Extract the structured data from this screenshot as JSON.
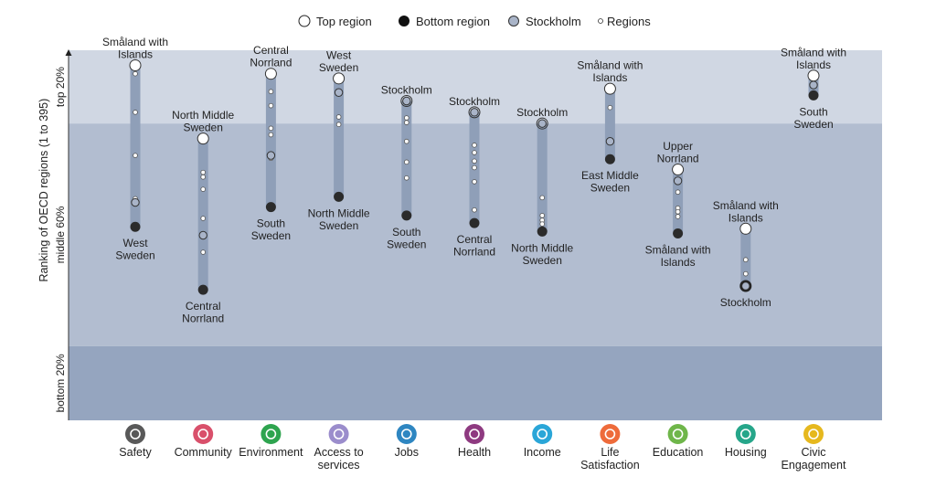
{
  "legend": [
    {
      "label": "Top region",
      "marker": "top"
    },
    {
      "label": "Bottom region",
      "marker": "bottom"
    },
    {
      "label": "Stockholm",
      "marker": "stockholm"
    },
    {
      "label": "Regions",
      "marker": "region"
    }
  ],
  "colors": {
    "band_top": "#d0d7e3",
    "band_middle": "#b2bdd0",
    "band_bottom": "#95a5bf",
    "range_bar": "#8f9fb8",
    "top_marker_fill": "#ffffff",
    "bottom_marker_fill": "#2b2b2b",
    "stockholm_fill": "#a9b4c8"
  },
  "chart_data": {
    "type": "scatter",
    "title": "",
    "ylabel": "Ranking of OECD regions (1 to 395)",
    "y_range": [
      1,
      395
    ],
    "y_inverted": true,
    "bands": [
      {
        "label": "top 20%",
        "from": 1,
        "to": 79
      },
      {
        "label": "middle 60%",
        "from": 79,
        "to": 316
      },
      {
        "label": "bottom 20%",
        "from": 316,
        "to": 395
      }
    ],
    "categories": [
      {
        "name": "Safety",
        "icon": "running-person-icon",
        "color": "#595959",
        "top": {
          "label": "Småland with Islands",
          "rank": 17
        },
        "bottom": {
          "label": "West Sweden",
          "rank": 189
        },
        "stockholm": 163,
        "regions": [
          26,
          67,
          113,
          159
        ]
      },
      {
        "name": "Community",
        "icon": "people-icon",
        "color": "#d9506b",
        "top": {
          "label": "North Middle Sweden",
          "rank": 95
        },
        "bottom": {
          "label": "Central Norrland",
          "rank": 256
        },
        "stockholm": 198,
        "regions": [
          131,
          136,
          149,
          180,
          216
        ]
      },
      {
        "name": "Environment",
        "icon": "tree-icon",
        "color": "#2ea44f",
        "top": {
          "label": "Central Norrland",
          "rank": 26
        },
        "bottom": {
          "label": "South Sweden",
          "rank": 168
        },
        "stockholm": 113,
        "regions": [
          45,
          60,
          84,
          91,
          116
        ]
      },
      {
        "name": "Access to services",
        "icon": "dots-circle-icon",
        "color": "#9b8dcc",
        "top": {
          "label": "West Sweden",
          "rank": 31
        },
        "bottom": {
          "label": "North Middle Sweden",
          "rank": 157
        },
        "stockholm": 46,
        "regions": [
          72,
          80
        ]
      },
      {
        "name": "Jobs",
        "icon": "briefcase-icon",
        "color": "#2e86c1",
        "top": {
          "label": "Stockholm",
          "rank": 55
        },
        "bottom": {
          "label": "South Sweden",
          "rank": 177
        },
        "stockholm": 55,
        "regions": [
          73,
          78,
          98,
          120,
          137
        ]
      },
      {
        "name": "Health",
        "icon": "cross-icon",
        "color": "#8e3a80",
        "top": {
          "label": "Stockholm",
          "rank": 67
        },
        "bottom": {
          "label": "Central Norrland",
          "rank": 185
        },
        "stockholm": 67,
        "regions": [
          102,
          110,
          119,
          126,
          141,
          171
        ]
      },
      {
        "name": "Income",
        "icon": "money-icon",
        "color": "#2aa6d8",
        "top": {
          "label": "Stockholm",
          "rank": 79
        },
        "bottom": {
          "label": "North Middle Sweden",
          "rank": 194
        },
        "stockholm": 79,
        "regions": [
          158,
          177,
          182,
          186
        ]
      },
      {
        "name": "Life Satisfaction",
        "icon": "heart-icon",
        "color": "#ee6b3b",
        "top": {
          "label": "Småland with Islands",
          "rank": 42
        },
        "bottom": {
          "label": "East Middle Sweden",
          "rank": 117
        },
        "stockholm": 98,
        "regions": [
          62
        ]
      },
      {
        "name": "Education",
        "icon": "book-icon",
        "color": "#6fb64a",
        "top": {
          "label": "Upper Norrland",
          "rank": 128
        },
        "bottom": {
          "label": "Småland with Islands",
          "rank": 196
        },
        "stockholm": 140,
        "regions": [
          152,
          169,
          173,
          178
        ]
      },
      {
        "name": "Housing",
        "icon": "house-icon",
        "color": "#26a68a",
        "top": {
          "label": "Småland with Islands",
          "rank": 191
        },
        "bottom": {
          "label": "Stockholm",
          "rank": 252
        },
        "stockholm": 252,
        "regions": [
          224,
          239
        ]
      },
      {
        "name": "Civic Engagement",
        "icon": "ballot-box-icon",
        "color": "#e6b81e",
        "top": {
          "label": "Småland with Islands",
          "rank": 28
        },
        "bottom": {
          "label": "South Sweden",
          "rank": 49
        },
        "stockholm": 38,
        "regions": []
      }
    ]
  }
}
